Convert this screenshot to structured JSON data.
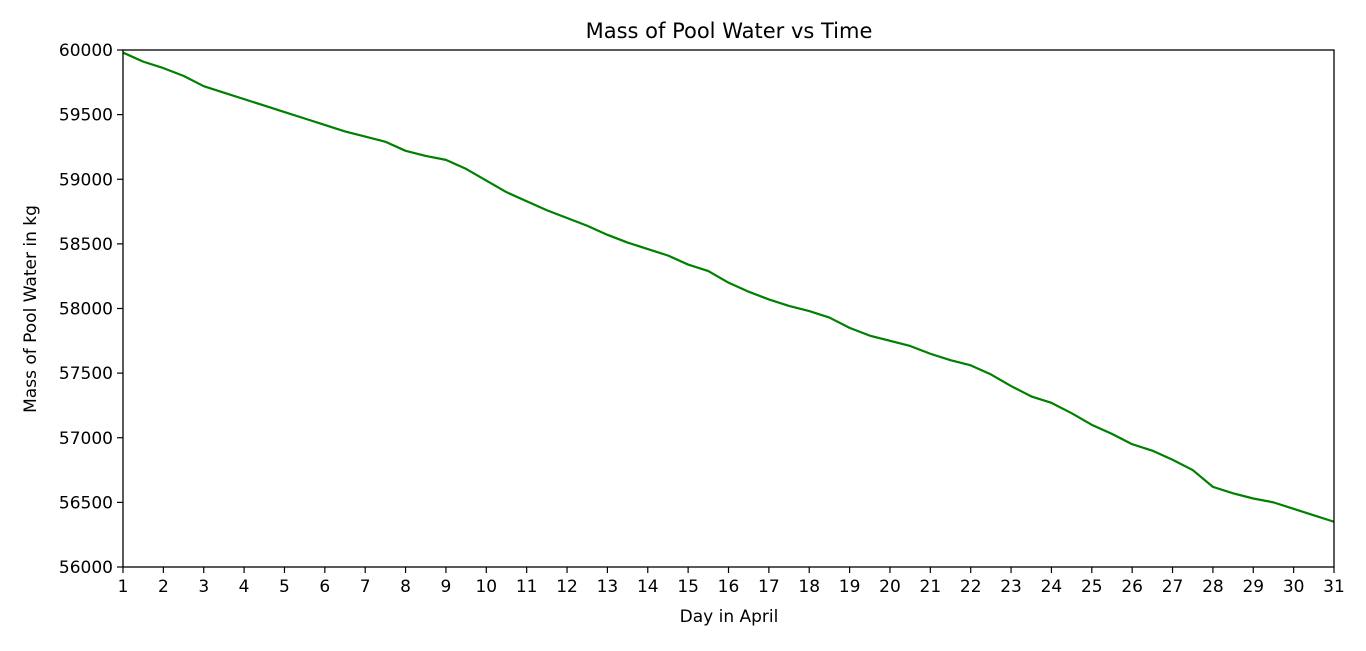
{
  "chart_data": {
    "type": "line",
    "title": "Mass of Pool Water vs Time",
    "xlabel": "Day in April",
    "ylabel": "Mass of Pool Water in kg",
    "xlim": [
      1,
      31
    ],
    "ylim": [
      56000,
      60000
    ],
    "xticks": [
      1,
      2,
      3,
      4,
      5,
      6,
      7,
      8,
      9,
      10,
      11,
      12,
      13,
      14,
      15,
      16,
      17,
      18,
      19,
      20,
      21,
      22,
      23,
      24,
      25,
      26,
      27,
      28,
      29,
      30,
      31
    ],
    "yticks": [
      56000,
      56500,
      57000,
      57500,
      58000,
      58500,
      59000,
      59500,
      60000
    ],
    "grid": false,
    "line_color": "#008000",
    "series": [
      {
        "x": [
          1,
          1.5,
          2,
          2.5,
          3,
          3.5,
          4,
          4.5,
          5,
          5.5,
          6,
          6.5,
          7,
          7.5,
          8,
          8.5,
          9,
          9.5,
          10,
          10.5,
          11,
          11.5,
          12,
          12.5,
          13,
          13.5,
          14,
          14.5,
          15,
          15.5,
          16,
          16.5,
          17,
          17.5,
          18,
          18.5,
          19,
          19.5,
          20,
          20.5,
          21,
          21.5,
          22,
          22.5,
          23,
          23.5,
          24,
          24.5,
          25,
          25.5,
          26,
          26.5,
          27,
          27.5,
          28,
          28.5,
          29,
          29.5,
          30,
          30.5,
          31
        ],
        "values": [
          59980,
          59910,
          59860,
          59800,
          59720,
          59670,
          59620,
          59570,
          59520,
          59470,
          59420,
          59370,
          59330,
          59290,
          59220,
          59180,
          59150,
          59080,
          58990,
          58900,
          58830,
          58760,
          58700,
          58640,
          58570,
          58510,
          58460,
          58410,
          58340,
          58290,
          58200,
          58130,
          58070,
          58020,
          57980,
          57930,
          57850,
          57790,
          57750,
          57710,
          57650,
          57600,
          57560,
          57490,
          57400,
          57320,
          57270,
          57190,
          57100,
          57030,
          56950,
          56900,
          56830,
          56750,
          56620,
          56570,
          56530,
          56500,
          56450,
          56400,
          56350
        ]
      }
    ]
  }
}
